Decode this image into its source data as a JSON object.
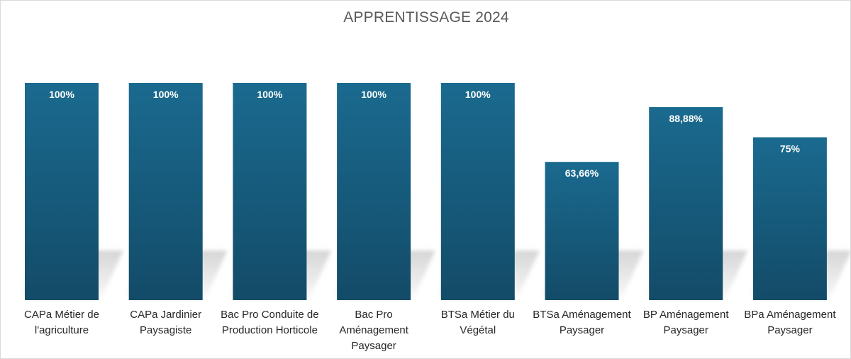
{
  "chart_data": {
    "type": "bar",
    "title": "APPRENTISSAGE 2024",
    "categories": [
      "CAPa Métier de l'agriculture",
      "CAPa Jardinier Paysagiste",
      "Bac Pro Conduite de Production Horticole",
      "Bac Pro Aménagement Paysager",
      "BTSa Métier du Végétal",
      "BTSa Aménagement Paysager",
      "BP Aménagement Paysager",
      "BPa Aménagement Paysager"
    ],
    "category_lines": [
      [
        "CAPa Métier de",
        "l'agriculture"
      ],
      [
        "CAPa Jardinier",
        "Paysagiste"
      ],
      [
        "Bac Pro Conduite de",
        "Production Horticole"
      ],
      [
        "Bac Pro",
        "Aménagement",
        "Paysager"
      ],
      [
        "BTSa Métier du",
        "Végétal"
      ],
      [
        "BTSa Aménagement",
        "Paysager"
      ],
      [
        "BP Aménagement",
        "Paysager"
      ],
      [
        "BPa Aménagement",
        "Paysager"
      ]
    ],
    "values": [
      100,
      100,
      100,
      100,
      100,
      63.66,
      88.88,
      75
    ],
    "data_labels": [
      "100%",
      "100%",
      "100%",
      "100%",
      "100%",
      "63,66%",
      "88,88%",
      "75%"
    ],
    "xlabel": "",
    "ylabel": "",
    "ylim": [
      0,
      100
    ],
    "grid": false,
    "legend": "none",
    "colors": {
      "bar_top": "#1a6a8f",
      "bar_bottom": "#134b68",
      "label": "#ffffff",
      "shadow": "#c8c8c8"
    }
  }
}
